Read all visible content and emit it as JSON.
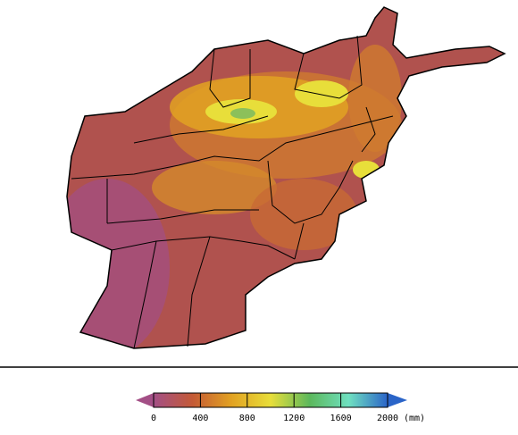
{
  "colorbar": {
    "ticks": [
      0,
      400,
      800,
      1200,
      1600,
      2000
    ],
    "unit": "(mm)",
    "colors": [
      "#a34f86",
      "#c45a36",
      "#e2a222",
      "#e8de3a",
      "#5cb85c",
      "#6fe0c0",
      "#2a64c8"
    ]
  }
}
